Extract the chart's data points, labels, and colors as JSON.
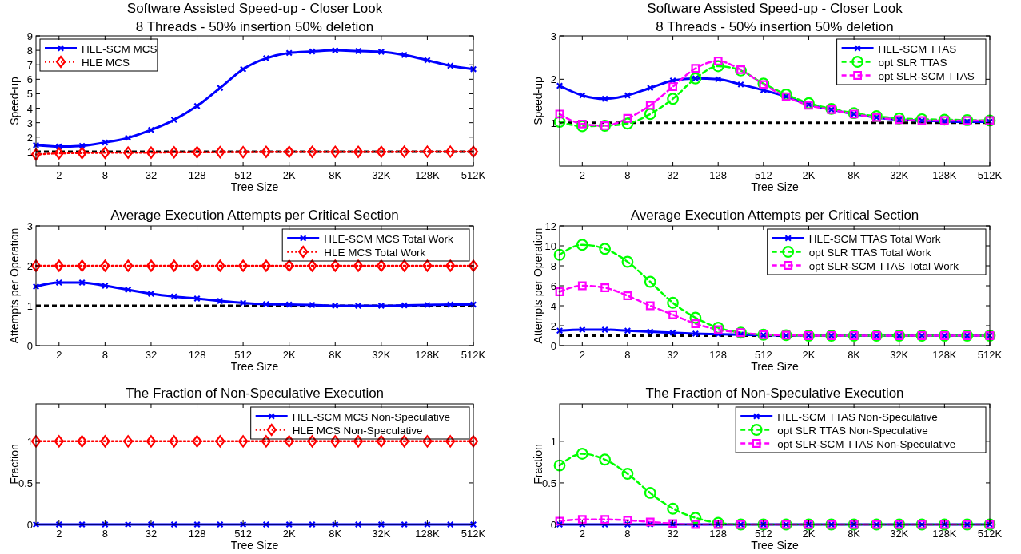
{
  "chart_data": [
    {
      "type": "line",
      "title": "Software Assisted Speed-up - Closer Look",
      "subtitle": "8 Threads - 50% insertion 50% deletion",
      "xlabel": "Tree Size",
      "ylabel": "Speed-up",
      "legend": "top left",
      "categories": [
        null,
        "2",
        null,
        "8",
        null,
        "32",
        null,
        "128",
        null,
        "512",
        null,
        "2K",
        null,
        "8K",
        null,
        "32K",
        null,
        "128K",
        null,
        "512K"
      ],
      "ylim": [
        0,
        9
      ],
      "yticks": [
        1,
        2,
        3,
        4,
        5,
        6,
        7,
        8,
        9
      ],
      "ref_lines": [
        {
          "axis": "y",
          "value": 1,
          "color": "#000000",
          "line_style": "dashed"
        }
      ],
      "series": [
        {
          "name": "HLE-SCM MCS",
          "color": "#0000ff",
          "marker": "cross",
          "line_style": "solid",
          "values": [
            1.45,
            1.35,
            1.4,
            1.63,
            1.95,
            2.5,
            3.2,
            4.15,
            5.4,
            6.7,
            7.45,
            7.82,
            7.92,
            8.0,
            7.95,
            7.9,
            7.68,
            7.32,
            6.93,
            6.7
          ]
        },
        {
          "name": "HLE MCS",
          "color": "#ff0000",
          "marker": "diamond",
          "line_style": "dotted",
          "values": [
            0.8,
            0.88,
            0.9,
            0.92,
            0.93,
            0.93,
            0.95,
            0.95,
            0.96,
            0.96,
            0.98,
            0.98,
            0.98,
            0.98,
            0.98,
            0.98,
            0.99,
            0.99,
            0.99,
            0.99
          ]
        }
      ]
    },
    {
      "type": "line",
      "title": "Software Assisted Speed-up - Closer Look",
      "subtitle": "8 Threads - 50% insertion 50% deletion",
      "xlabel": "Tree Size",
      "ylabel": "Speed-up",
      "legend": "top right",
      "categories": [
        null,
        "2",
        null,
        "8",
        null,
        "32",
        null,
        "128",
        null,
        "512",
        null,
        "2K",
        null,
        "8K",
        null,
        "32K",
        null,
        "128K",
        null,
        "512K"
      ],
      "ylim": [
        0,
        3
      ],
      "yticks": [
        1,
        2,
        3
      ],
      "ref_lines": [
        {
          "axis": "y",
          "value": 1,
          "color": "#000000",
          "line_style": "dashed"
        }
      ],
      "series": [
        {
          "name": "HLE-SCM TTAS",
          "color": "#0000ff",
          "marker": "cross",
          "line_style": "solid",
          "values": [
            1.85,
            1.63,
            1.55,
            1.63,
            1.8,
            1.97,
            2.02,
            2.0,
            1.88,
            1.75,
            1.6,
            1.42,
            1.3,
            1.2,
            1.12,
            1.07,
            1.05,
            1.03,
            1.02,
            1.02
          ]
        },
        {
          "name": "opt SLR TTAS",
          "color": "#00ff00",
          "marker": "circle",
          "line_style": "dashed",
          "values": [
            1.02,
            0.92,
            0.93,
            0.98,
            1.2,
            1.55,
            2.02,
            2.3,
            2.2,
            1.9,
            1.65,
            1.45,
            1.32,
            1.22,
            1.15,
            1.1,
            1.08,
            1.07,
            1.06,
            1.05
          ]
        },
        {
          "name": "opt SLR-SCM TTAS",
          "color": "#ff00ff",
          "marker": "square",
          "line_style": "dashed",
          "values": [
            1.2,
            0.97,
            0.93,
            1.1,
            1.4,
            1.83,
            2.25,
            2.42,
            2.22,
            1.88,
            1.6,
            1.4,
            1.3,
            1.2,
            1.12,
            1.07,
            1.05,
            1.05,
            1.05,
            1.05
          ]
        }
      ]
    },
    {
      "type": "line",
      "title": "Average Execution Attempts per Critical Section",
      "xlabel": "Tree Size",
      "ylabel": "Attempts per Operation",
      "legend": "top right",
      "categories": [
        null,
        "2",
        null,
        "8",
        null,
        "32",
        null,
        "128",
        null,
        "512",
        null,
        "2K",
        null,
        "8K",
        null,
        "32K",
        null,
        "128K",
        null,
        "512K"
      ],
      "ylim": [
        0,
        3
      ],
      "yticks": [
        0,
        1,
        2,
        3
      ],
      "ref_lines": [
        {
          "axis": "y",
          "value": 1,
          "color": "#000000",
          "line_style": "dashed"
        }
      ],
      "series": [
        {
          "name": "HLE-SCM MCS Total Work",
          "color": "#0000ff",
          "marker": "cross",
          "line_style": "solid",
          "values": [
            1.48,
            1.58,
            1.58,
            1.5,
            1.4,
            1.3,
            1.23,
            1.18,
            1.12,
            1.07,
            1.04,
            1.03,
            1.02,
            1.0,
            1.0,
            1.0,
            1.01,
            1.02,
            1.03,
            1.03
          ]
        },
        {
          "name": "HLE MCS Total Work",
          "color": "#ff0000",
          "marker": "diamond",
          "line_style": "dotted",
          "values": [
            2,
            2,
            2,
            2,
            2,
            2,
            2,
            2,
            2,
            2,
            2,
            2,
            2,
            2,
            2,
            2,
            2,
            2,
            2,
            2
          ]
        }
      ]
    },
    {
      "type": "line",
      "title": "Average Execution Attempts per Critical Section",
      "xlabel": "Tree Size",
      "ylabel": "Attempts per Operation",
      "legend": "top right",
      "categories": [
        null,
        "2",
        null,
        "8",
        null,
        "32",
        null,
        "128",
        null,
        "512",
        null,
        "2K",
        null,
        "8K",
        null,
        "32K",
        null,
        "128K",
        null,
        "512K"
      ],
      "ylim": [
        0,
        12
      ],
      "yticks": [
        0,
        2,
        4,
        6,
        8,
        10,
        12
      ],
      "ref_lines": [
        {
          "axis": "y",
          "value": 1,
          "color": "#000000",
          "line_style": "dashed"
        }
      ],
      "series": [
        {
          "name": "HLE-SCM TTAS Total Work",
          "color": "#0000ff",
          "marker": "cross",
          "line_style": "solid",
          "values": [
            1.5,
            1.6,
            1.6,
            1.5,
            1.4,
            1.3,
            1.2,
            1.15,
            1.1,
            1.05,
            1.03,
            1.02,
            1.0,
            1.0,
            1.0,
            1.0,
            1.0,
            1.0,
            1.0,
            1.0
          ]
        },
        {
          "name": "opt SLR TTAS Total Work",
          "color": "#00ff00",
          "marker": "circle",
          "line_style": "dashed",
          "values": [
            9.1,
            10.1,
            9.7,
            8.4,
            6.4,
            4.3,
            2.8,
            1.8,
            1.3,
            1.1,
            1.05,
            1.0,
            1.0,
            1.0,
            1.0,
            1.0,
            1.0,
            1.0,
            1.0,
            1.0
          ]
        },
        {
          "name": "opt SLR-SCM TTAS Total Work",
          "color": "#ff00ff",
          "marker": "square",
          "line_style": "dashed",
          "values": [
            5.4,
            6.0,
            5.8,
            5.0,
            4.0,
            3.1,
            2.2,
            1.6,
            1.3,
            1.1,
            1.05,
            1.0,
            1.0,
            1.0,
            1.0,
            1.0,
            1.0,
            1.0,
            1.0,
            1.0
          ]
        }
      ]
    },
    {
      "type": "line",
      "title": "The Fraction of Non-Speculative Execution",
      "xlabel": "Tree Size",
      "ylabel": "Fraction",
      "legend": "top right",
      "categories": [
        null,
        "2",
        null,
        "8",
        null,
        "32",
        null,
        "128",
        null,
        "512",
        null,
        "2K",
        null,
        "8K",
        null,
        "32K",
        null,
        "128K",
        null,
        "512K"
      ],
      "ylim": [
        0,
        1.45
      ],
      "yticks": [
        0,
        0.5,
        1
      ],
      "series": [
        {
          "name": "HLE-SCM MCS Non-Speculative",
          "color": "#0000ff",
          "marker": "cross",
          "line_style": "solid",
          "values": [
            0,
            0,
            0,
            0,
            0,
            0,
            0,
            0,
            0,
            0,
            0,
            0,
            0,
            0,
            0,
            0,
            0,
            0,
            0,
            0
          ]
        },
        {
          "name": "HLE MCS Non-Speculative",
          "color": "#ff0000",
          "marker": "diamond",
          "line_style": "dotted",
          "values": [
            1,
            1,
            1,
            1,
            1,
            1,
            1,
            1,
            1,
            1,
            1,
            1,
            1,
            1,
            1,
            1,
            1,
            1,
            1,
            1
          ]
        }
      ]
    },
    {
      "type": "line",
      "title": "The Fraction of Non-Speculative Execution",
      "xlabel": "Tree Size",
      "ylabel": "Fraction",
      "legend": "top right",
      "categories": [
        null,
        "2",
        null,
        "8",
        null,
        "32",
        null,
        "128",
        null,
        "512",
        null,
        "2K",
        null,
        "8K",
        null,
        "32K",
        null,
        "128K",
        null,
        "512K"
      ],
      "ylim": [
        0,
        1.45
      ],
      "yticks": [
        0,
        0.5,
        1
      ],
      "series": [
        {
          "name": "HLE-SCM TTAS Non-Speculative",
          "color": "#0000ff",
          "marker": "cross",
          "line_style": "solid",
          "values": [
            0,
            0,
            0,
            0,
            0,
            0,
            0,
            0,
            0,
            0,
            0,
            0,
            0,
            0,
            0,
            0,
            0,
            0,
            0,
            0
          ]
        },
        {
          "name": "opt SLR TTAS Non-Speculative",
          "color": "#00ff00",
          "marker": "circle",
          "line_style": "dashed",
          "values": [
            0.71,
            0.85,
            0.78,
            0.61,
            0.38,
            0.19,
            0.08,
            0.02,
            0,
            0,
            0,
            0,
            0,
            0,
            0,
            0,
            0,
            0,
            0,
            0
          ]
        },
        {
          "name": "opt SLR-SCM TTAS Non-Speculative",
          "color": "#ff00ff",
          "marker": "square",
          "line_style": "dashed",
          "values": [
            0.04,
            0.06,
            0.06,
            0.05,
            0.03,
            0.01,
            0,
            0,
            0,
            0,
            0,
            0,
            0,
            0,
            0,
            0,
            0,
            0,
            0,
            0
          ]
        }
      ]
    }
  ]
}
